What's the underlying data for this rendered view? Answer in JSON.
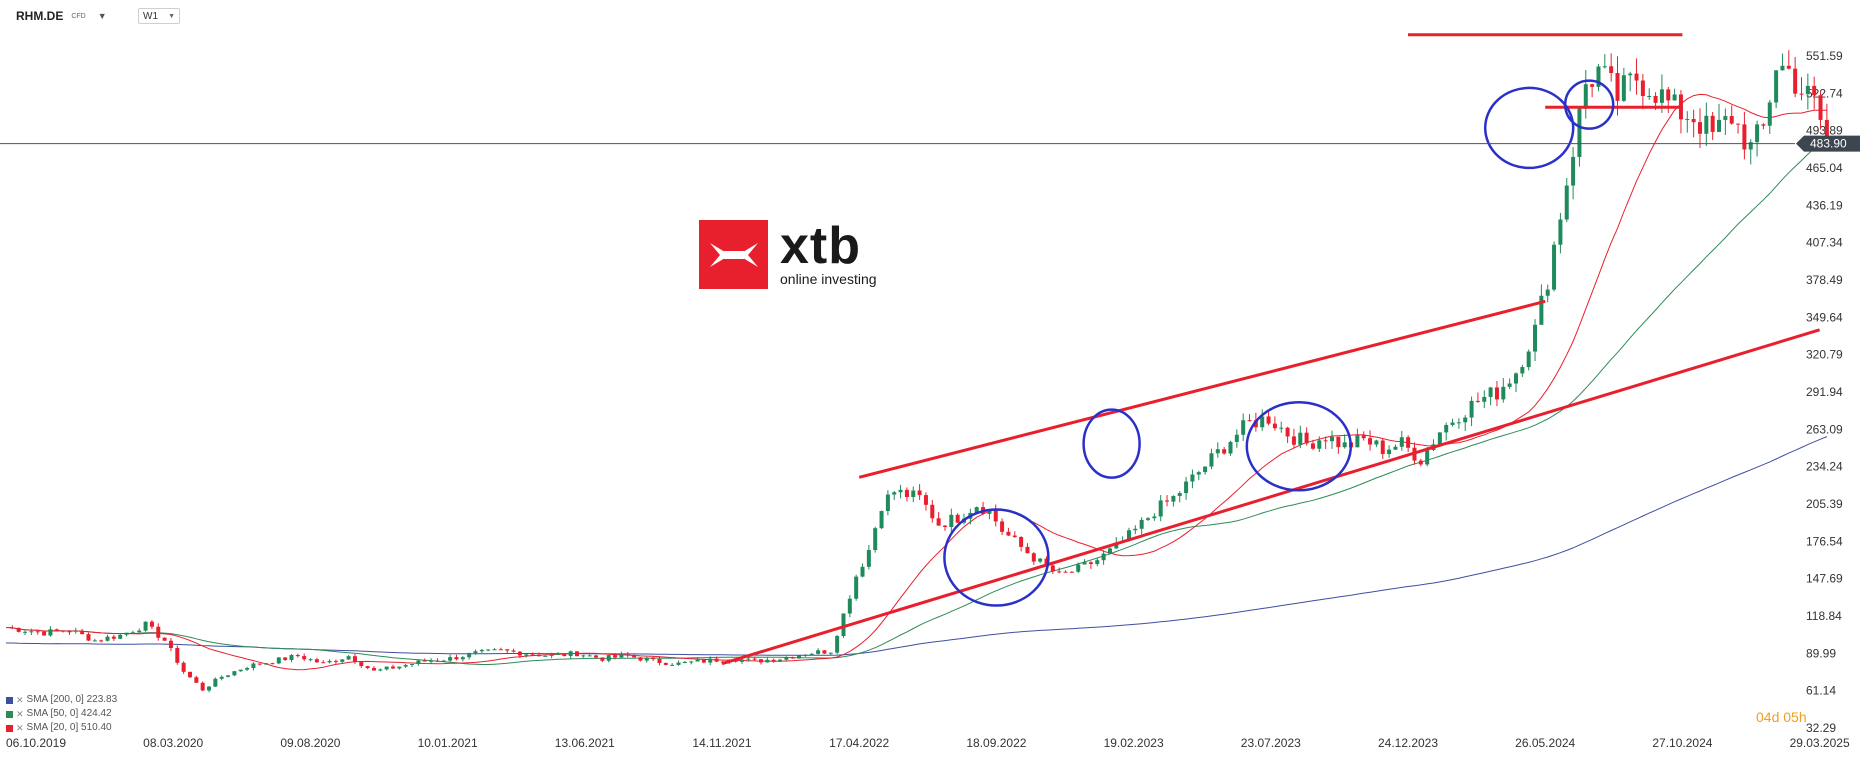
{
  "header": {
    "symbol": "RHM.DE",
    "instrument_type": "CFD",
    "timeframe": "W1"
  },
  "logo": {
    "word": "xtb",
    "tagline": "online investing"
  },
  "indicators": [
    {
      "label": "SMA [200, 0] 223.83",
      "color": "#3f4fa0"
    },
    {
      "label": "SMA [50, 0] 424.42",
      "color": "#2e8b57"
    },
    {
      "label": "SMA [20, 0] 510.40",
      "color": "#e8202e"
    }
  ],
  "countdown": "04d 05h",
  "chart_data": {
    "type": "candlestick",
    "y_axis": {
      "ticks": [
        551.59,
        522.74,
        493.89,
        465.04,
        436.19,
        407.34,
        378.49,
        349.64,
        320.79,
        291.94,
        263.09,
        234.24,
        205.39,
        176.54,
        147.69,
        118.84,
        89.99,
        61.14,
        32.29
      ],
      "ylim": [
        32.29,
        551.59
      ],
      "current_price": 483.9
    },
    "x_axis": {
      "tick_labels": [
        "06.10.2019",
        "08.03.2020",
        "09.08.2020",
        "10.01.2021",
        "13.06.2021",
        "14.11.2021",
        "17.04.2022",
        "18.09.2022",
        "19.02.2023",
        "23.07.2023",
        "24.12.2023",
        "26.05.2024",
        "27.10.2024",
        "29.03.2025"
      ]
    },
    "up_color": "#1f8a5b",
    "down_color": "#e8202e",
    "sma_colors": {
      "sma20": "#e8202e",
      "sma50": "#2e8b57",
      "sma200": "#3f4fa0"
    },
    "price_path": [
      [
        0,
        110
      ],
      [
        6,
        106
      ],
      [
        10,
        108
      ],
      [
        14,
        100
      ],
      [
        18,
        104
      ],
      [
        22,
        112
      ],
      [
        25,
        100
      ],
      [
        28,
        76
      ],
      [
        31,
        62
      ],
      [
        34,
        72
      ],
      [
        38,
        80
      ],
      [
        42,
        84
      ],
      [
        46,
        88
      ],
      [
        50,
        82
      ],
      [
        54,
        88
      ],
      [
        58,
        76
      ],
      [
        62,
        80
      ],
      [
        66,
        84
      ],
      [
        70,
        86
      ],
      [
        74,
        90
      ],
      [
        78,
        92
      ],
      [
        82,
        90
      ],
      [
        86,
        88
      ],
      [
        90,
        90
      ],
      [
        94,
        86
      ],
      [
        98,
        88
      ],
      [
        102,
        84
      ],
      [
        106,
        82
      ],
      [
        110,
        84
      ],
      [
        114,
        86
      ],
      [
        118,
        84
      ],
      [
        122,
        86
      ],
      [
        126,
        90
      ],
      [
        130,
        92
      ],
      [
        132,
        120
      ],
      [
        134,
        150
      ],
      [
        136,
        170
      ],
      [
        138,
        205
      ],
      [
        140,
        215
      ],
      [
        144,
        210
      ],
      [
        147,
        190
      ],
      [
        150,
        195
      ],
      [
        153,
        205
      ],
      [
        155,
        200
      ],
      [
        157,
        185
      ],
      [
        160,
        172
      ],
      [
        163,
        160
      ],
      [
        166,
        150
      ],
      [
        169,
        155
      ],
      [
        172,
        162
      ],
      [
        175,
        172
      ],
      [
        178,
        185
      ],
      [
        181,
        200
      ],
      [
        184,
        210
      ],
      [
        187,
        225
      ],
      [
        190,
        240
      ],
      [
        193,
        255
      ],
      [
        196,
        268
      ],
      [
        199,
        272
      ],
      [
        202,
        260
      ],
      [
        205,
        252
      ],
      [
        208,
        258
      ],
      [
        211,
        250
      ],
      [
        214,
        255
      ],
      [
        217,
        248
      ],
      [
        220,
        252
      ],
      [
        223,
        240
      ],
      [
        226,
        262
      ],
      [
        229,
        275
      ],
      [
        232,
        285
      ],
      [
        235,
        292
      ],
      [
        238,
        308
      ],
      [
        241,
        340
      ],
      [
        243,
        380
      ],
      [
        245,
        430
      ],
      [
        247,
        480
      ],
      [
        249,
        530
      ],
      [
        251,
        540
      ],
      [
        254,
        520
      ],
      [
        257,
        535
      ],
      [
        260,
        525
      ],
      [
        263,
        510
      ],
      [
        266,
        505
      ],
      [
        269,
        490
      ],
      [
        272,
        505
      ],
      [
        275,
        480
      ],
      [
        277,
        495
      ],
      [
        279,
        545
      ],
      [
        281,
        540
      ],
      [
        283,
        525
      ],
      [
        285,
        515
      ],
      [
        287,
        488
      ]
    ],
    "trendlines": [
      {
        "from": [
          "17.04.2022",
          226
        ],
        "to": [
          "26.05.2024",
          362
        ],
        "color": "#e8202e"
      },
      {
        "from": [
          "14.11.2021",
          82
        ],
        "to": [
          "29.03.2025",
          340
        ],
        "color": "#e8202e"
      },
      {
        "from": [
          "24.12.2023",
          568
        ],
        "to": [
          "27.10.2024",
          568
        ],
        "color": "#e8202e"
      },
      {
        "from": [
          "26.05.2024",
          512
        ],
        "to": [
          "27.10.2024",
          512
        ],
        "color": "#e8202e"
      }
    ],
    "highlight_circles": [
      {
        "center": [
          "18.09.2022",
          164
        ],
        "color": "#2a30c8"
      },
      {
        "center": [
          "19.02.2023",
          252
        ],
        "color": "#2a30c8"
      },
      {
        "center": [
          "23.07.2023",
          250
        ],
        "color": "#2a30c8"
      },
      {
        "center": [
          "26.05.2024",
          496
        ],
        "color": "#2a30c8"
      },
      {
        "center": [
          "26.05.2024",
          514
        ],
        "color": "#2a30c8"
      }
    ]
  }
}
